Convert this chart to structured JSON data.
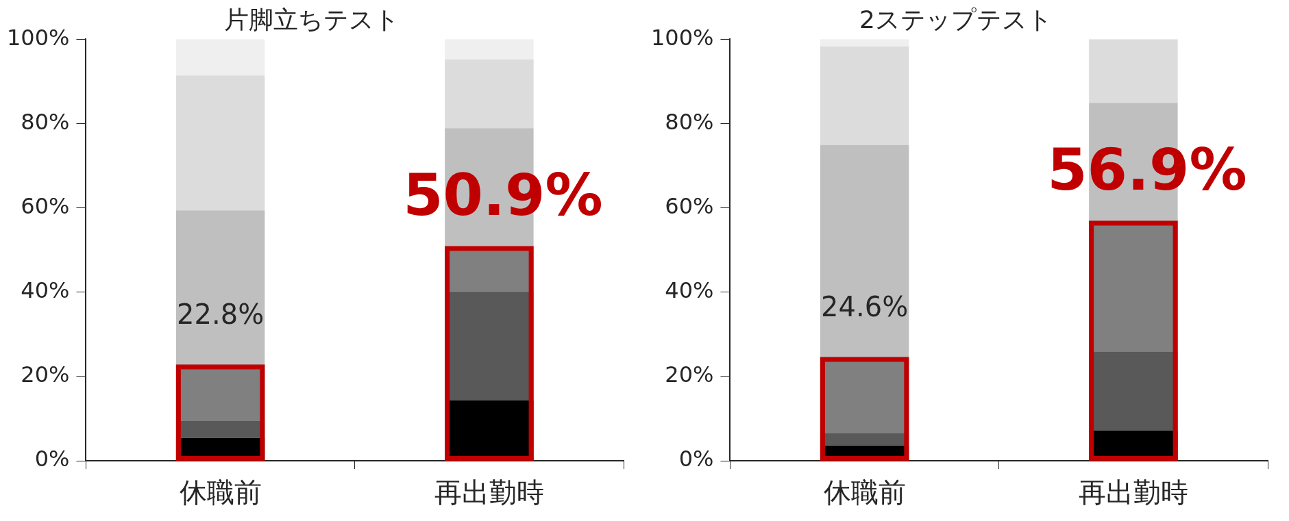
{
  "chart_data": [
    {
      "type": "bar",
      "title": "片脚立ちテスト",
      "categories": [
        "休職前",
        "再出勤時"
      ],
      "stacked": true,
      "ylim": [
        0,
        100
      ],
      "yticks": [
        {
          "value": 0,
          "label": "0%"
        },
        {
          "value": 20,
          "label": "20%"
        },
        {
          "value": 40,
          "label": "40%"
        },
        {
          "value": 60,
          "label": "60%"
        },
        {
          "value": 80,
          "label": "80%"
        },
        {
          "value": 100,
          "label": "100%"
        }
      ],
      "series": [
        {
          "color": "#000000",
          "values": [
            5.4,
            14.3
          ]
        },
        {
          "color": "#595959",
          "values": [
            4.0,
            25.9
          ]
        },
        {
          "color": "#808080",
          "values": [
            13.4,
            10.7
          ]
        },
        {
          "color": "#bfbfbf",
          "values": [
            36.6,
            28.0
          ]
        },
        {
          "color": "#dcdcdc",
          "values": [
            32.0,
            16.3
          ]
        },
        {
          "color": "#efefef",
          "values": [
            8.6,
            4.8
          ]
        }
      ],
      "annotations": [
        {
          "text": "22.8%",
          "x": "休職前",
          "y": 22.8
        },
        {
          "text": "50.9%",
          "x": "再出勤時",
          "y": 50.9
        }
      ]
    },
    {
      "type": "bar",
      "title": "2ステップテスト",
      "categories": [
        "休職前",
        "再出勤時"
      ],
      "stacked": true,
      "ylim": [
        0,
        100
      ],
      "yticks": [
        {
          "value": 0,
          "label": "0%"
        },
        {
          "value": 20,
          "label": "20%"
        },
        {
          "value": 40,
          "label": "40%"
        },
        {
          "value": 60,
          "label": "60%"
        },
        {
          "value": 80,
          "label": "80%"
        },
        {
          "value": 100,
          "label": "100%"
        }
      ],
      "series": [
        {
          "color": "#000000",
          "values": [
            3.6,
            7.2
          ]
        },
        {
          "color": "#595959",
          "values": [
            2.9,
            18.6
          ]
        },
        {
          "color": "#808080",
          "values": [
            18.1,
            31.1
          ]
        },
        {
          "color": "#bfbfbf",
          "values": [
            50.3,
            28.0
          ]
        },
        {
          "color": "#dcdcdc",
          "values": [
            23.4,
            15.1
          ]
        },
        {
          "color": "#efefef",
          "values": [
            1.7,
            0
          ]
        }
      ],
      "annotations": [
        {
          "text": "24.6%",
          "x": "休職前",
          "y": 24.6
        },
        {
          "text": "56.9%",
          "x": "再出勤時",
          "y": 56.9
        }
      ]
    }
  ]
}
